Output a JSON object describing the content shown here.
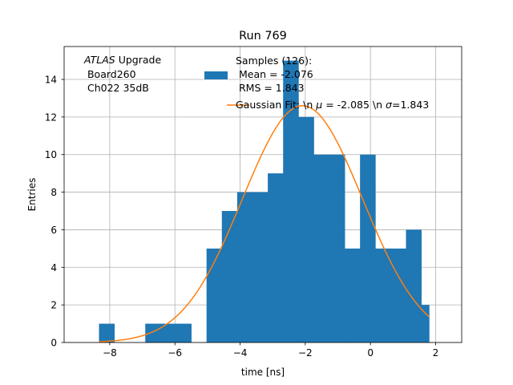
{
  "chart_data": {
    "type": "bar",
    "title": "Run 769",
    "xlabel": "time [ns]",
    "ylabel": "Entries",
    "xlim": [
      -9.4,
      2.8
    ],
    "ylim": [
      0,
      15.75
    ],
    "grid": true,
    "xticks": [
      -8,
      -6,
      -4,
      -2,
      0,
      2
    ],
    "xtick_labels": [
      "−8",
      "−6",
      "−4",
      "−2",
      "0",
      "2"
    ],
    "yticks": [
      0,
      2,
      4,
      6,
      8,
      10,
      12,
      14
    ],
    "ytick_labels": [
      "0",
      "2",
      "4",
      "6",
      "8",
      "10",
      "12",
      "14"
    ],
    "annotation": {
      "atlas": "ATLAS",
      "upgrade": " Upgrade",
      "line2": " Board260",
      "line3": " Ch022 35dB"
    },
    "histogram": {
      "name": "Samples (126):\n Mean = -2.076\n RMS = 1.843",
      "color": "#1f77b4",
      "bin_edges": [
        -8.33,
        -7.86,
        -7.38,
        -6.91,
        -6.44,
        -5.97,
        -5.5,
        -5.03,
        -4.56,
        -4.09,
        -3.62,
        -3.15,
        -2.68,
        -2.21,
        -1.74,
        -1.26,
        -0.79,
        -0.32,
        0.15,
        0.62,
        1.09,
        1.56,
        1.8
      ],
      "counts": [
        1,
        0,
        0,
        1,
        1,
        1,
        0,
        5,
        7,
        8,
        8,
        9,
        15,
        12,
        10,
        10,
        5,
        10,
        5,
        5,
        6,
        2
      ]
    },
    "fit": {
      "name": "Gaussian Fit: \\n μ = -2.085 \\n σ=1.843",
      "color": "#ff7f0e",
      "amplitude": 12.6,
      "mu": -2.085,
      "sigma": 1.843,
      "x_range": [
        -8.33,
        1.8
      ]
    },
    "legend": {
      "placement": "top-right",
      "samples_title": "Samples (126):",
      "samples_mean": " Mean = -2.076",
      "samples_rms": " RMS = 1.843",
      "fit_label_prefix": "Gaussian Fit: \\n ",
      "fit_mu_symbol": "μ",
      "fit_mu_value": " = -2.085 \\n ",
      "fit_sigma_symbol": "σ",
      "fit_sigma_value": "=1.843"
    }
  }
}
